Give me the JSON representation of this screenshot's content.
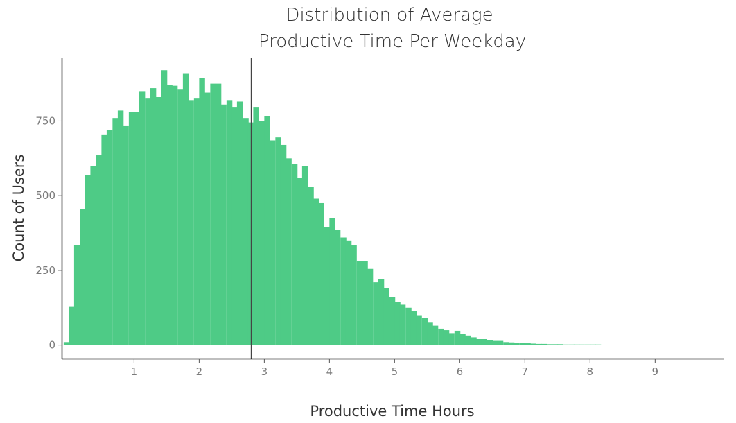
{
  "chart_data": {
    "type": "bar",
    "title_lines": [
      "Distribution of Average",
      "Productive Time Per Weekday"
    ],
    "xlabel": "Productive Time Hours",
    "ylabel": "Count of Users",
    "x_ticks": [
      "1",
      "2",
      "3",
      "4",
      "5",
      "6",
      "7",
      "8",
      "9"
    ],
    "y_ticks": [
      "0",
      "250",
      "500",
      "750"
    ],
    "xlim": [
      -0.1,
      10.05
    ],
    "ylim": [
      -45,
      960
    ],
    "grid": false,
    "legend": "none",
    "bin_width": 0.0833,
    "vertical_line_x": 2.8,
    "bar_color": "#4ecb86",
    "line_color": "#444444",
    "bin_starts": [
      -0.08,
      0.0,
      0.08,
      0.17,
      0.25,
      0.33,
      0.42,
      0.5,
      0.58,
      0.67,
      0.75,
      0.83,
      0.92,
      1.0,
      1.08,
      1.17,
      1.25,
      1.33,
      1.42,
      1.5,
      1.58,
      1.67,
      1.75,
      1.83,
      1.92,
      2.0,
      2.08,
      2.17,
      2.25,
      2.33,
      2.42,
      2.5,
      2.58,
      2.67,
      2.75,
      2.83,
      2.92,
      3.0,
      3.08,
      3.17,
      3.25,
      3.33,
      3.42,
      3.5,
      3.58,
      3.67,
      3.75,
      3.83,
      3.92,
      4.0,
      4.08,
      4.17,
      4.25,
      4.33,
      4.42,
      4.5,
      4.58,
      4.67,
      4.75,
      4.83,
      4.92,
      5.0,
      5.08,
      5.17,
      5.25,
      5.33,
      5.42,
      5.5,
      5.58,
      5.67,
      5.75,
      5.83,
      5.92,
      6.0,
      6.08,
      6.17,
      6.25,
      6.33,
      6.42,
      6.5,
      6.58,
      6.67,
      6.75,
      6.83,
      6.92,
      7.0,
      7.08,
      7.17,
      7.25,
      7.33,
      7.42,
      7.5,
      7.58,
      7.67,
      7.75,
      7.83,
      7.92,
      8.0,
      8.08,
      8.17,
      8.25,
      8.33,
      8.42,
      8.5,
      8.58,
      8.67,
      8.75,
      8.83,
      8.92,
      9.0,
      9.08,
      9.17,
      9.25,
      9.33,
      9.42,
      9.5,
      9.58,
      9.67,
      9.92
    ],
    "values": [
      10,
      130,
      335,
      455,
      570,
      600,
      635,
      705,
      720,
      760,
      785,
      735,
      780,
      780,
      850,
      825,
      860,
      830,
      920,
      870,
      868,
      855,
      910,
      820,
      825,
      895,
      845,
      875,
      875,
      805,
      820,
      795,
      815,
      760,
      745,
      795,
      750,
      765,
      685,
      695,
      670,
      625,
      605,
      560,
      600,
      530,
      490,
      475,
      395,
      425,
      385,
      360,
      350,
      335,
      280,
      280,
      255,
      210,
      220,
      190,
      160,
      145,
      135,
      125,
      115,
      100,
      90,
      75,
      65,
      55,
      50,
      40,
      48,
      38,
      32,
      26,
      20,
      20,
      16,
      14,
      14,
      10,
      9,
      8,
      7,
      6,
      5,
      4,
      4,
      3,
      3,
      3,
      2,
      2,
      2,
      2,
      2,
      2,
      2,
      1,
      1,
      1,
      1,
      1,
      1,
      1,
      1,
      1,
      1,
      1,
      1,
      1,
      1,
      1,
      1,
      1,
      1,
      1,
      1
    ]
  }
}
